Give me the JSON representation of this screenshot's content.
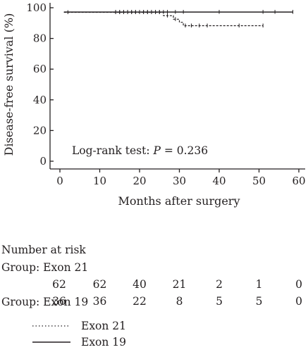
{
  "chart_data": {
    "type": "line",
    "ylabel": "Disease-free survival (%)",
    "xlabel": "Months after surgery",
    "xlim": [
      0,
      60
    ],
    "ylim": [
      0,
      100
    ],
    "x_ticks": [
      0,
      10,
      20,
      30,
      40,
      50,
      60
    ],
    "y_ticks": [
      0,
      20,
      40,
      60,
      80,
      100
    ],
    "grid": false,
    "legend_position": "bottom-left",
    "annotation": {
      "prefix": "Log-rank test: ",
      "p_symbol": "P",
      "suffix": " = 0.236"
    },
    "series": [
      {
        "name": "Exon 21",
        "line_style": "dotted",
        "steps": [
          [
            1,
            97
          ],
          [
            26,
            97
          ],
          [
            26,
            94.8
          ],
          [
            28.5,
            94.8
          ],
          [
            28.5,
            92.5
          ],
          [
            30,
            92.5
          ],
          [
            30,
            90.5
          ],
          [
            31,
            90.5
          ],
          [
            31,
            88.3
          ],
          [
            51,
            88.3
          ]
        ],
        "censor_x": [
          2,
          14,
          15,
          16,
          17,
          18,
          19,
          20,
          21,
          22,
          23,
          24,
          25,
          27,
          29,
          31.5,
          33,
          35,
          37,
          45,
          51
        ]
      },
      {
        "name": "Exon 19",
        "line_style": "solid",
        "steps": [
          [
            1,
            97.2
          ],
          [
            58.5,
            97.2
          ]
        ],
        "censor_x": [
          14,
          15,
          16,
          17,
          18,
          19,
          20,
          21,
          22,
          23,
          24,
          25,
          26,
          27,
          29,
          31,
          40,
          51,
          54,
          58.5
        ]
      }
    ]
  },
  "risk_table": {
    "title": "Number at risk",
    "groups": [
      {
        "label": "Group: Exon 21",
        "values": [
          "62",
          "62",
          "40",
          "21",
          "2",
          "1",
          "0"
        ]
      },
      {
        "label": "Group: Exon 19",
        "values": [
          "36",
          "36",
          "22",
          "8",
          "5",
          "5",
          "0"
        ]
      }
    ]
  },
  "legend": {
    "items": [
      {
        "label": "Exon 21",
        "style": "dotted"
      },
      {
        "label": "Exon 19",
        "style": "solid"
      }
    ]
  }
}
